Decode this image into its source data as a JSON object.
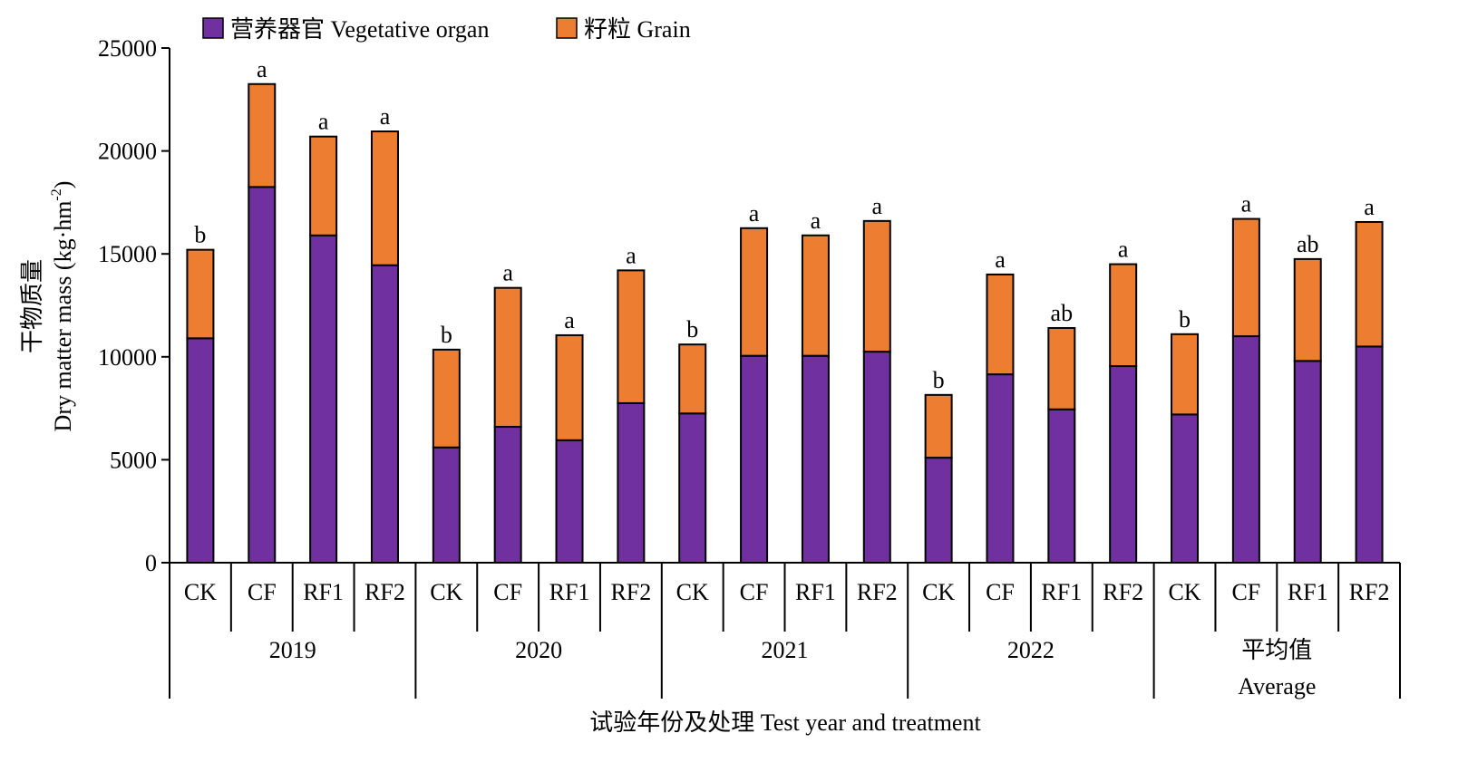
{
  "chart_data": {
    "type": "bar",
    "stacked": true,
    "xlabel": "试验年份及处理 Test year and treatment",
    "ylabel_cn": "干物质量",
    "ylabel_en": "Dry matter mass (kg·hm",
    "ylabel_sup": "-2",
    "ylabel_close": ")",
    "ylim": [
      0,
      25000
    ],
    "yticks": [
      "0",
      "5000",
      "10000",
      "15000",
      "20000",
      "25000"
    ],
    "grid": false,
    "legend_position": "top-left",
    "legend": [
      {
        "label": "营养器官 Vegetative organ",
        "color": "#7030a0"
      },
      {
        "label": "籽粒 Grain",
        "color": "#ed7d31"
      }
    ],
    "groups": [
      {
        "label": "2019",
        "label2": ""
      },
      {
        "label": "2020",
        "label2": ""
      },
      {
        "label": "2021",
        "label2": ""
      },
      {
        "label": "2022",
        "label2": ""
      },
      {
        "label": "平均值",
        "label2": "Average"
      }
    ],
    "categories": [
      "CK",
      "CF",
      "RF1",
      "RF2",
      "CK",
      "CF",
      "RF1",
      "RF2",
      "CK",
      "CF",
      "RF1",
      "RF2",
      "CK",
      "CF",
      "RF1",
      "RF2",
      "CK",
      "CF",
      "RF1",
      "RF2"
    ],
    "series": [
      {
        "name": "营养器官 Vegetative organ",
        "color": "#7030a0",
        "values": [
          10900,
          18250,
          15900,
          14450,
          5600,
          6600,
          5950,
          7750,
          7250,
          10050,
          10050,
          10250,
          5100,
          9150,
          7450,
          9550,
          7200,
          11000,
          9800,
          10500
        ]
      },
      {
        "name": "籽粒 Grain",
        "color": "#ed7d31",
        "values": [
          4300,
          5000,
          4800,
          6500,
          4750,
          6750,
          5100,
          6450,
          3350,
          6200,
          5850,
          6350,
          3050,
          4850,
          3950,
          4950,
          3900,
          5700,
          4950,
          6050
        ]
      }
    ],
    "significance": [
      "b",
      "a",
      "a",
      "a",
      "b",
      "a",
      "a",
      "a",
      "b",
      "a",
      "a",
      "a",
      "b",
      "a",
      "ab",
      "a",
      "b",
      "a",
      "ab",
      "a"
    ]
  }
}
